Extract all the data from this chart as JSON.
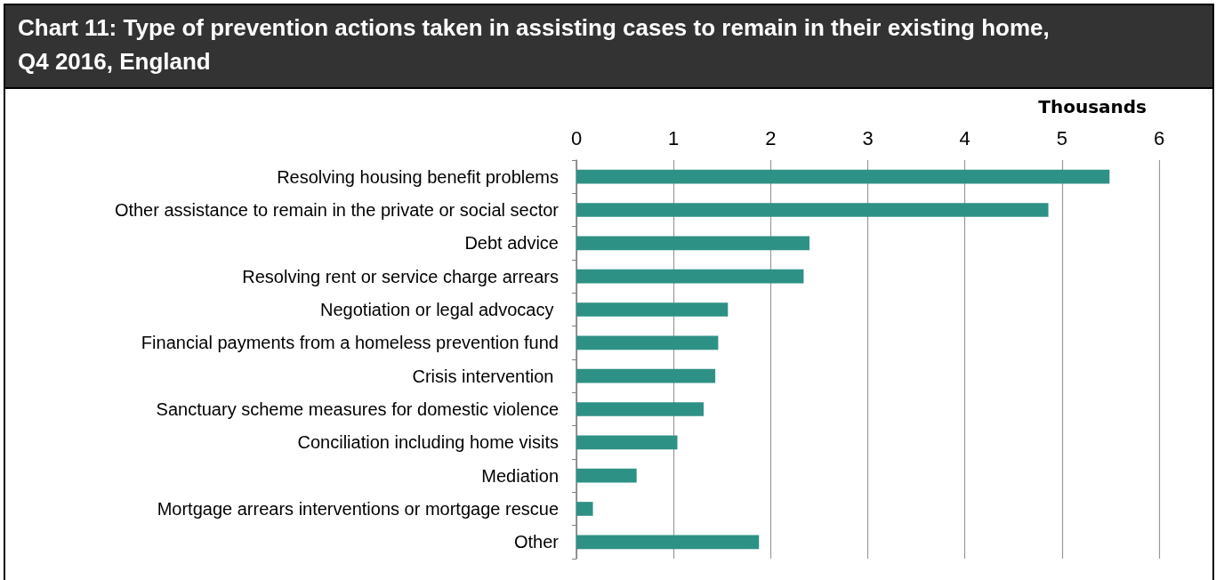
{
  "chart_data": {
    "type": "bar",
    "orientation": "horizontal",
    "title": "Chart 11: Type of prevention actions taken in assisting cases to remain in their existing home,  Q4 2016, England",
    "xlabel": "Thousands",
    "categories": [
      "Resolving housing benefit problems",
      "Other assistance to remain in the private or social sector",
      "Debt advice",
      "Resolving rent or service charge arrears",
      "Negotiation or legal advocacy ",
      "Financial payments from a homeless prevention fund",
      "Crisis intervention ",
      "Sanctuary scheme measures for domestic violence",
      "Conciliation including home visits",
      "Mediation",
      "Mortgage arrears interventions or mortgage rescue",
      "Other"
    ],
    "values": [
      5.49,
      4.86,
      2.4,
      2.34,
      1.56,
      1.46,
      1.43,
      1.31,
      1.04,
      0.62,
      0.17,
      1.88
    ],
    "color": "#2e9185",
    "xlim": [
      0,
      6
    ],
    "xticks": [
      0,
      1,
      2,
      3,
      4,
      5,
      6
    ],
    "grid": "x"
  }
}
